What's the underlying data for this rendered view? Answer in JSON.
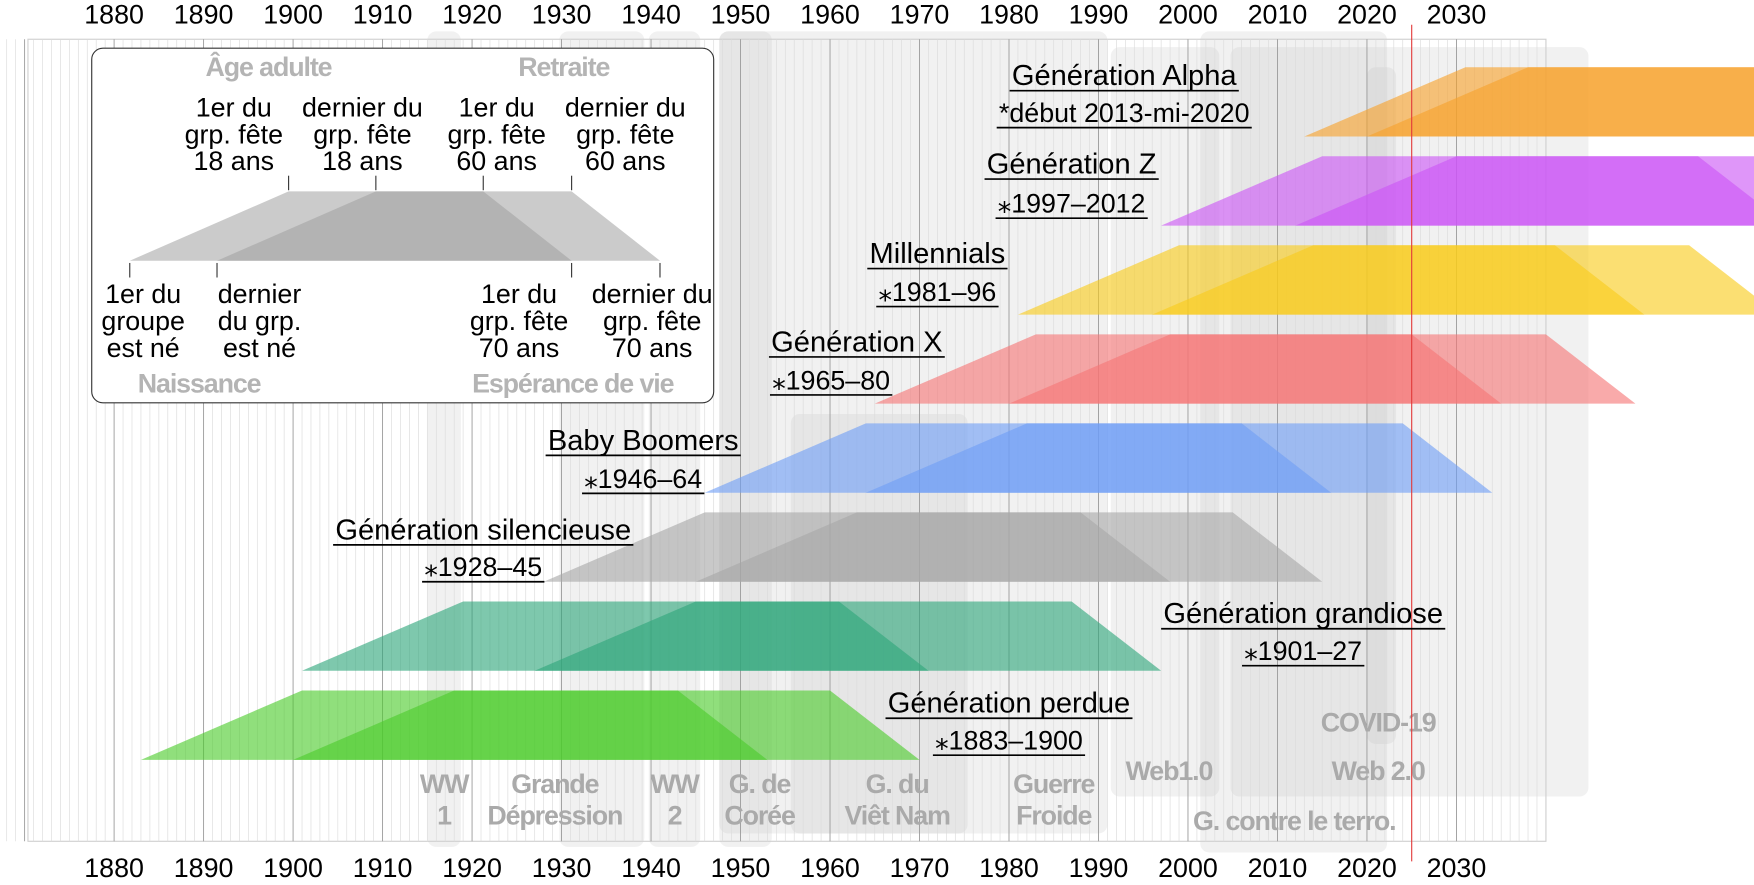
{
  "chart_data": {
    "type": "area",
    "title": "",
    "xlabel": "",
    "ylabel": "",
    "xlim": [
      1865,
      2040
    ],
    "x_ticks": [
      "1880",
      "1890",
      "1900",
      "1910",
      "1920",
      "1930",
      "1940",
      "1950",
      "1960",
      "1970",
      "1980",
      "1990",
      "2000",
      "2010",
      "2020",
      "2030"
    ],
    "current_year_marker": 2025,
    "generations": [
      {
        "name": "Génération Alpha",
        "dates": "*début 2013-mi-2020",
        "start": 2013,
        "end": 2020,
        "color": "#f7a22c"
      },
      {
        "name": "Génération Z",
        "dates": "⁎1997–2012",
        "start": 1997,
        "end": 2012,
        "color": "#cc55f5"
      },
      {
        "name": "Millennials",
        "dates": "⁎1981–96",
        "start": 1981,
        "end": 1996,
        "color": "#f9cc1c"
      },
      {
        "name": "Génération X",
        "dates": "⁎1965–80",
        "start": 1965,
        "end": 1980,
        "color": "#f57676"
      },
      {
        "name": "Baby Boomers",
        "dates": "⁎1946–64",
        "start": 1946,
        "end": 1964,
        "color": "#6f9ef5"
      },
      {
        "name": "Génération silencieuse",
        "dates": "⁎1928–45",
        "start": 1928,
        "end": 1945,
        "color": "#a8a8a8"
      },
      {
        "name": "Génération grandiose",
        "dates": "⁎1901–27",
        "start": 1901,
        "end": 1927,
        "color": "#2fa67a"
      },
      {
        "name": "Génération perdue",
        "dates": "⁎1883–1900",
        "start": 1883,
        "end": 1900,
        "color": "#4ccc2c"
      }
    ],
    "trapezoid_ages": {
      "adult": 18,
      "retirement": 60,
      "life_expectancy": 70
    },
    "events": [
      {
        "lines": [
          "Guerre",
          "Froide"
        ],
        "start": 1947,
        "end": 1991
      },
      {
        "lines": [
          "WW",
          "1"
        ],
        "start": 1914,
        "end": 1918
      },
      {
        "lines": [
          "Grande",
          "Dépression"
        ],
        "start": 1929,
        "end": 1939
      },
      {
        "lines": [
          "WW",
          "2"
        ],
        "start": 1939,
        "end": 1945
      },
      {
        "lines": [
          "G. de",
          "Corée"
        ],
        "start": 1950,
        "end": 1953
      },
      {
        "lines": [
          "G. du",
          "Viêt Nam"
        ],
        "start": 1955,
        "end": 1975
      },
      {
        "lines": [
          "Web1.0"
        ],
        "start": 1991,
        "end": 2004
      },
      {
        "lines": [
          "G. contre le terro."
        ],
        "start": 2001,
        "end": 2021
      },
      {
        "lines": [
          "Web 2.0"
        ],
        "start": 2004,
        "end": 2020
      },
      {
        "lines": [
          "COVID-19"
        ],
        "start": 2020,
        "end": 2023
      }
    ],
    "legend": {
      "top_headers": [
        "Âge adulte",
        "Retraite"
      ],
      "bottom_headers": [
        "Naissance",
        "Espérance de vie"
      ],
      "top_labels": [
        [
          "1er du",
          "grp. fête",
          "18 ans"
        ],
        [
          "dernier du",
          "grp. fête",
          "18 ans"
        ],
        [
          "1er du",
          "grp. fête",
          "60 ans"
        ],
        [
          "dernier du",
          "grp. fête",
          "60 ans"
        ]
      ],
      "bottom_labels": [
        [
          "1er du",
          "groupe",
          "est né"
        ],
        [
          "dernier",
          "du grp.",
          "est né"
        ],
        [
          "1er du",
          "grp. fête",
          "70 ans"
        ],
        [
          "dernier du",
          "grp. fête",
          "70 ans"
        ]
      ]
    }
  }
}
